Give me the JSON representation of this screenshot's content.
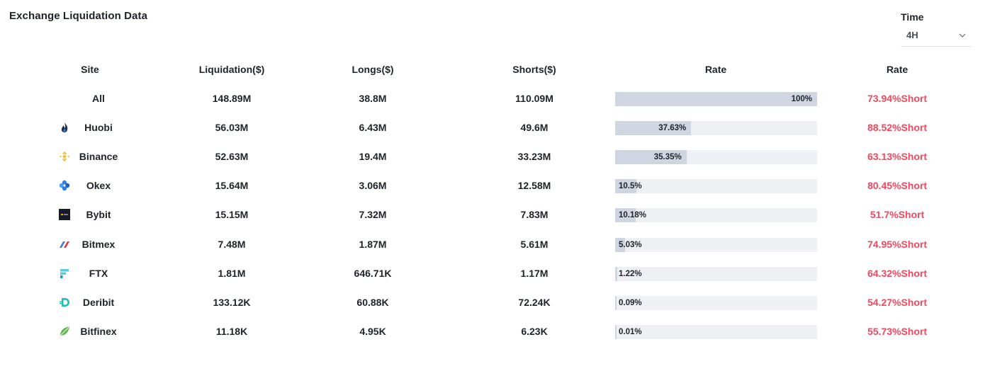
{
  "header": {
    "title": "Exchange Liquidation Data",
    "time_label": "Time",
    "time_value": "4H"
  },
  "table": {
    "columns": [
      "Site",
      "Liquidation($)",
      "Longs($)",
      "Shorts($)",
      "Rate",
      "Rate"
    ],
    "rows": [
      {
        "site": "All",
        "icon": "",
        "liquidation": "148.89M",
        "longs": "38.8M",
        "shorts": "110.09M",
        "share_label": "100%",
        "share": 100,
        "short_rate": "73.94%Short"
      },
      {
        "site": "Huobi",
        "icon": "huobi-flame-icon",
        "liquidation": "56.03M",
        "longs": "6.43M",
        "shorts": "49.6M",
        "share_label": "37.63%",
        "share": 37.63,
        "short_rate": "88.52%Short"
      },
      {
        "site": "Binance",
        "icon": "binance-diamond-icon",
        "liquidation": "52.63M",
        "longs": "19.4M",
        "shorts": "33.23M",
        "share_label": "35.35%",
        "share": 35.35,
        "short_rate": "63.13%Short"
      },
      {
        "site": "Okex",
        "icon": "okex-cluster-icon",
        "liquidation": "15.64M",
        "longs": "3.06M",
        "shorts": "12.58M",
        "share_label": "10.5%",
        "share": 10.5,
        "short_rate": "80.45%Short"
      },
      {
        "site": "Bybit",
        "icon": "bybit-square-icon",
        "liquidation": "15.15M",
        "longs": "7.32M",
        "shorts": "7.83M",
        "share_label": "10.18%",
        "share": 10.18,
        "short_rate": "51.7%Short"
      },
      {
        "site": "Bitmex",
        "icon": "bitmex-slash-icon",
        "liquidation": "7.48M",
        "longs": "1.87M",
        "shorts": "5.61M",
        "share_label": "5.03%",
        "share": 5.03,
        "short_rate": "74.95%Short"
      },
      {
        "site": "FTX",
        "icon": "ftx-bars-icon",
        "liquidation": "1.81M",
        "longs": "646.71K",
        "shorts": "1.17M",
        "share_label": "1.22%",
        "share": 1.22,
        "short_rate": "64.32%Short"
      },
      {
        "site": "Deribit",
        "icon": "deribit-d-icon",
        "liquidation": "133.12K",
        "longs": "60.88K",
        "shorts": "72.24K",
        "share_label": "0.09%",
        "share": 0.09,
        "short_rate": "54.27%Short"
      },
      {
        "site": "Bitfinex",
        "icon": "bitfinex-leaf-icon",
        "liquidation": "11.18K",
        "longs": "4.95K",
        "shorts": "6.23K",
        "share_label": "0.01%",
        "share": 0.01,
        "short_rate": "55.73%Short"
      }
    ]
  },
  "colors": {
    "short": "#f6465d",
    "bar_fill": "#d0d6e1",
    "bar_track": "#eef0f3"
  }
}
